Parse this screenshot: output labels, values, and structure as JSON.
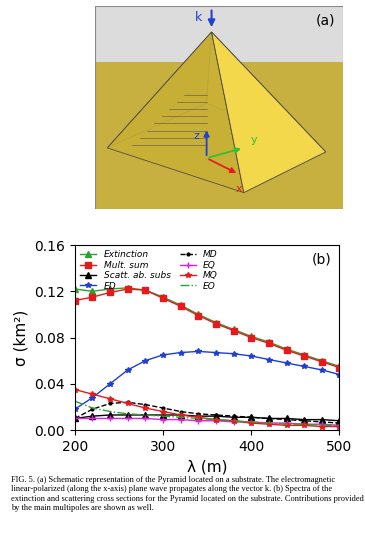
{
  "panel_a": {
    "label": "(a)",
    "wave_vector": "k",
    "axes": [
      "x",
      "y",
      "z"
    ]
  },
  "chart_data": {
    "type": "line",
    "label": "(b)",
    "x_label": "λ (m)",
    "y_label": "σ (km²)",
    "xlim": [
      200,
      500
    ],
    "xticks": [
      200,
      300,
      400,
      500
    ],
    "ylim": [
      0,
      0.16
    ],
    "yticks": [
      {
        "value": 0,
        "label": "0.00"
      },
      {
        "value": 0.04,
        "label": "0.04"
      },
      {
        "value": 0.08,
        "label": "0.08"
      },
      {
        "value": 0.12,
        "label": "0.12"
      },
      {
        "value": 0.16,
        "label": "0.16"
      }
    ],
    "legend": "upper left",
    "x": [
      200,
      220,
      240,
      260,
      280,
      300,
      320,
      340,
      360,
      380,
      400,
      420,
      440,
      460,
      480,
      500
    ],
    "series": [
      {
        "name": "Extinction",
        "color": "#2ca02c",
        "marker": "triangle",
        "line_style": "solid",
        "values": [
          0.122,
          0.12,
          0.122,
          0.123,
          0.121,
          0.115,
          0.108,
          0.1,
          0.093,
          0.087,
          0.081,
          0.076,
          0.07,
          0.065,
          0.06,
          0.055
        ]
      },
      {
        "name": "Mult. sum",
        "color": "#e41a1c",
        "marker": "square",
        "line_style": "solid",
        "values": [
          0.112,
          0.115,
          0.119,
          0.122,
          0.121,
          0.114,
          0.107,
          0.099,
          0.092,
          0.086,
          0.08,
          0.075,
          0.069,
          0.064,
          0.059,
          0.054
        ]
      },
      {
        "name": "Scatt. ab. subs",
        "color": "#000000",
        "marker": "triangle",
        "line_style": "solid",
        "values": [
          0.01,
          0.012,
          0.013,
          0.013,
          0.013,
          0.013,
          0.013,
          0.012,
          0.012,
          0.011,
          0.011,
          0.01,
          0.01,
          0.009,
          0.009,
          0.008
        ]
      },
      {
        "name": "ED",
        "color": "#1f3fd0",
        "marker": "star",
        "line_style": "solid",
        "values": [
          0.018,
          0.028,
          0.04,
          0.052,
          0.06,
          0.065,
          0.067,
          0.068,
          0.067,
          0.066,
          0.064,
          0.061,
          0.058,
          0.055,
          0.052,
          0.048
        ]
      },
      {
        "name": "MD",
        "color": "#000000",
        "marker": "dot",
        "line_style": "dashed",
        "values": [
          0.01,
          0.018,
          0.023,
          0.024,
          0.022,
          0.019,
          0.016,
          0.014,
          0.013,
          0.012,
          0.011,
          0.01,
          0.009,
          0.008,
          0.007,
          0.006
        ]
      },
      {
        "name": "EQ",
        "color": "#e020e0",
        "marker": "plus",
        "line_style": "solid",
        "values": [
          0.01,
          0.01,
          0.01,
          0.01,
          0.01,
          0.009,
          0.009,
          0.008,
          0.008,
          0.007,
          0.007,
          0.006,
          0.006,
          0.005,
          0.005,
          0.004
        ]
      },
      {
        "name": "MQ",
        "color": "#e41a1c",
        "marker": "star",
        "line_style": "solid",
        "values": [
          0.035,
          0.031,
          0.027,
          0.023,
          0.019,
          0.016,
          0.013,
          0.011,
          0.009,
          0.008,
          0.006,
          0.005,
          0.004,
          0.004,
          0.003,
          0.003
        ]
      },
      {
        "name": "EO",
        "color": "#2ca02c",
        "marker": "none",
        "line_style": "dashdot",
        "values": [
          0.025,
          0.019,
          0.016,
          0.014,
          0.013,
          0.012,
          0.011,
          0.01,
          0.009,
          0.008,
          0.007,
          0.006,
          0.005,
          0.005,
          0.004,
          0.004
        ]
      }
    ]
  },
  "caption": "FIG. 5. (a) Schematic representation of the Pyramid located on a substrate. The electromagnetic linear-polarized (along the x-axis) plane wave propagates along the vector k. (b) Spectra of the extinction and scattering cross sections for the Pyramid located on the substrate. Contributions provided by the main multipoles are shown as well."
}
